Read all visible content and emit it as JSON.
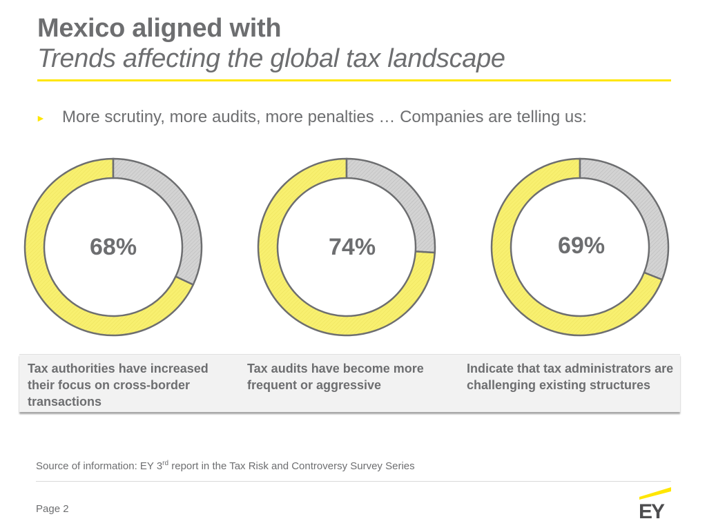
{
  "title": {
    "line1": "Mexico aligned with",
    "line2": "Trends affecting the global tax landscape"
  },
  "bullet": {
    "text": "More scrutiny, more audits, more penalties … Companies are telling us:"
  },
  "chart_data": [
    {
      "type": "pie",
      "label": "68%",
      "values": [
        68,
        32
      ],
      "caption": "Tax authorities have increased their focus on cross-border transactions"
    },
    {
      "type": "pie",
      "label": "74%",
      "values": [
        74,
        26
      ],
      "caption": "Tax audits have become more frequent or aggressive"
    },
    {
      "type": "pie",
      "label": "69%",
      "values": [
        69,
        31
      ],
      "caption": "Indicate that tax administrators are challenging existing structures"
    }
  ],
  "colors": {
    "highlight": "#ffe600",
    "slice_yes": "#f8f070",
    "slice_rest": "#d3d3d3",
    "text": "#6d6e70"
  },
  "footer": {
    "source_prefix": "Source of information: EY 3",
    "source_sup": "rd",
    "source_suffix": " report in the Tax Risk and Controversy Survey Series",
    "page": "Page 2",
    "logo_text": "EY"
  }
}
